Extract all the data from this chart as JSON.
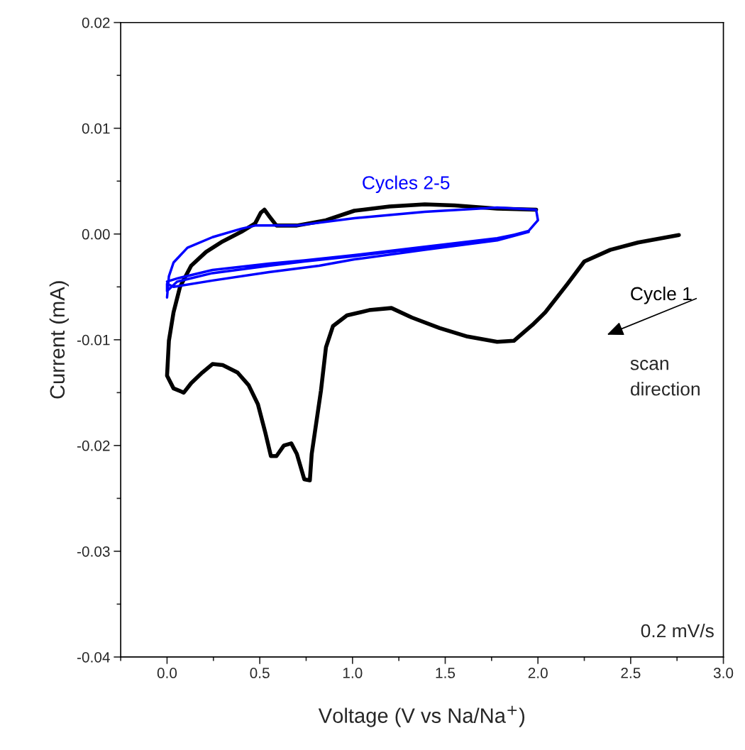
{
  "chart_data": {
    "type": "line",
    "xlabel": "Voltage (V vs Na/Na$^{+}$)",
    "ylabel": "Current (mA)",
    "xlim": [
      -0.25,
      3.0
    ],
    "ylim": [
      -0.04,
      0.02
    ],
    "xticks": [
      {
        "value": 0,
        "label": "0.0"
      },
      0.5,
      {
        "value": 1,
        "label": "1.0"
      },
      1.5,
      {
        "value": 2,
        "label": "2.0"
      },
      2.5,
      {
        "value": 3,
        "label": "3.0"
      }
    ],
    "yticks": [
      {
        "value": -0.04,
        "label": "-0.04"
      },
      {
        "value": -0.03,
        "label": "-0.03"
      },
      {
        "value": -0.02,
        "label": "-0.02"
      },
      {
        "value": -0.01,
        "label": "-0.01"
      },
      {
        "value": 0,
        "label": "0.00"
      },
      {
        "value": 0.01,
        "label": "0.01"
      },
      {
        "value": 0.02,
        "label": "0.02"
      }
    ],
    "grid": false,
    "legend": false,
    "marker": "none",
    "line_style": "solid",
    "series": [
      {
        "name": "Cycle 1",
        "color": "#000000",
        "x": [
          2.76,
          2.54,
          2.39,
          2.25,
          2.16,
          2.04,
          1.97,
          1.87,
          1.78,
          1.62,
          1.47,
          1.32,
          1.21,
          1.09,
          0.97,
          0.895,
          0.857,
          0.83,
          0.78,
          0.77,
          0.74,
          0.7,
          0.67,
          0.63,
          0.59,
          0.56,
          0.53,
          0.49,
          0.44,
          0.38,
          0.3,
          0.245,
          0.19,
          0.13,
          0.09,
          0.035,
          0.0,
          0.01,
          0.035,
          0.07,
          0.13,
          0.21,
          0.3,
          0.4,
          0.475,
          0.505,
          0.525,
          0.55,
          0.59,
          0.7,
          0.857,
          1.01,
          1.2,
          1.39,
          1.55,
          1.78,
          1.99
        ],
        "values": [
          -0.0001,
          -0.0008,
          -0.0015,
          -0.0026,
          -0.0047,
          -0.0074,
          -0.0086,
          -0.0101,
          -0.0102,
          -0.0097,
          -0.0089,
          -0.0079,
          -0.007,
          -0.0072,
          -0.0077,
          -0.0087,
          -0.0107,
          -0.0148,
          -0.0208,
          -0.0233,
          -0.0232,
          -0.0208,
          -0.0198,
          -0.02,
          -0.021,
          -0.021,
          -0.0188,
          -0.0161,
          -0.0143,
          -0.0131,
          -0.0124,
          -0.0123,
          -0.0131,
          -0.0141,
          -0.015,
          -0.0146,
          -0.0134,
          -0.0101,
          -0.0074,
          -0.005,
          -0.003,
          -0.0017,
          -0.0007,
          0.0002,
          0.001,
          0.002,
          0.0023,
          0.0017,
          0.0008,
          0.0008,
          0.0013,
          0.0022,
          0.0026,
          0.0028,
          0.0027,
          0.0024,
          0.0023
        ]
      },
      {
        "name": "Cycles 2-5",
        "color": "#0000ff",
        "x": [
          0.0,
          0.01,
          0.035,
          0.11,
          0.245,
          0.4,
          0.475,
          0.7,
          1.01,
          1.39,
          1.78,
          1.99,
          2.0,
          1.95,
          1.78,
          1.39,
          1.01,
          0.74,
          0.55,
          0.245,
          0.055,
          0.0,
          0.0,
          0.035,
          0.245,
          0.55,
          0.82,
          1.01,
          1.39,
          1.78,
          1.95,
          1.78,
          1.39,
          1.01,
          0.74,
          0.55,
          0.245,
          0.055,
          0.0
        ],
        "values": [
          -0.006,
          -0.004,
          -0.0027,
          -0.0013,
          -0.0003,
          0.0005,
          0.0008,
          0.0008,
          0.0015,
          0.0021,
          0.0025,
          0.0023,
          0.0013,
          0.0003,
          -0.0005,
          -0.0013,
          -0.0021,
          -0.0026,
          -0.003,
          -0.0037,
          -0.0045,
          -0.0054,
          -0.0047,
          -0.005,
          -0.0044,
          -0.0036,
          -0.003,
          -0.0024,
          -0.0015,
          -0.0006,
          0.0002,
          -0.0004,
          -0.0012,
          -0.002,
          -0.0025,
          -0.0028,
          -0.0034,
          -0.0042,
          -0.0045
        ]
      }
    ],
    "annotations": [
      "scan\ndirection",
      "0.2 mV/s"
    ]
  }
}
